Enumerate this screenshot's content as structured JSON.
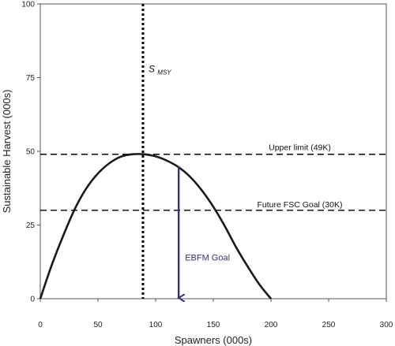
{
  "chart_data": {
    "type": "line",
    "title": "",
    "xlabel": "Spawners (000s)",
    "ylabel": "Sustainable Harvest (000s)",
    "xlim": [
      0,
      300
    ],
    "ylim": [
      0,
      100
    ],
    "x_ticks": [
      0,
      50,
      100,
      150,
      200,
      250,
      300
    ],
    "y_ticks": [
      0,
      25,
      50,
      75,
      100
    ],
    "grid": false,
    "legend": "none",
    "series": [
      {
        "kind": "curve",
        "x": [
          0,
          10,
          20,
          30,
          40,
          50,
          60,
          70,
          80,
          90,
          100,
          110,
          120,
          130,
          140,
          150,
          160,
          170,
          180,
          190,
          200
        ],
        "y": [
          0,
          11.5,
          21.5,
          30.5,
          37.5,
          42.5,
          46.0,
          48.2,
          49.0,
          49.0,
          48.3,
          46.8,
          44.6,
          41.3,
          36.8,
          31.2,
          24.6,
          17.3,
          10.8,
          4.8,
          0
        ],
        "color": "#1a1a1a"
      }
    ],
    "reference_lines": [
      {
        "orientation": "vertical",
        "x": 89,
        "style": "dotted",
        "color": "#000000"
      },
      {
        "orientation": "horizontal",
        "y": 49,
        "style": "dashed",
        "color": "#000000"
      },
      {
        "orientation": "horizontal",
        "y": 30,
        "style": "dashed",
        "color": "#000000"
      }
    ],
    "annotations": {
      "smsy_main": "S",
      "smsy_sub": "MSY",
      "upper_limit": "Upper limit (49K)",
      "fsc_goal": "Future FSC Goal (30K)",
      "ebfm_goal": "EBFM Goal"
    },
    "ebfm_arrow": {
      "x": 120,
      "y_start": 45,
      "y_end": 0,
      "color": "#3b2d85"
    }
  }
}
